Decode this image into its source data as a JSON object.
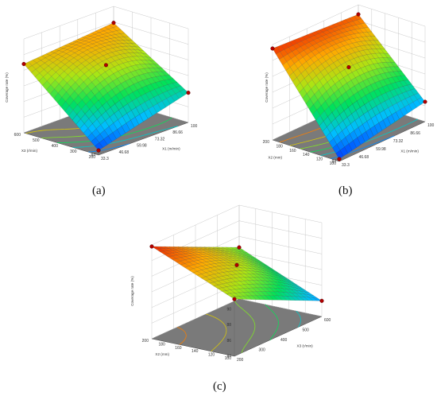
{
  "captions": [
    "(a)",
    "(b)",
    "(c)"
  ],
  "chart_data": [
    {
      "type": "surface3d",
      "caption": "(a)",
      "zlabel": "Coverage rate (%)",
      "xlabel": "X1 (m/min)",
      "ylabel": "X3 (r/min)",
      "zlim": [
        84,
        96
      ],
      "zticks": [
        "84",
        "86",
        "88",
        "90",
        "92",
        "94",
        "96"
      ],
      "xticks": [
        "33.3",
        "46.68",
        "59.98",
        "73.32",
        "86.66",
        "100"
      ],
      "yticks": [
        "200",
        "300",
        "400",
        "500",
        "600"
      ],
      "xlim": [
        33.3,
        100
      ],
      "ylim": [
        200,
        600
      ],
      "points": [
        {
          "x": 33.3,
          "y": 600,
          "z": 92.8
        },
        {
          "x": 66.6,
          "y": 400,
          "z": 92.0
        },
        {
          "x": 100,
          "y": 600,
          "z": 93.9
        },
        {
          "x": 33.3,
          "y": 200,
          "z": 84.6
        },
        {
          "x": 100,
          "y": 200,
          "z": 87.8
        }
      ]
    },
    {
      "type": "surface3d",
      "caption": "(b)",
      "zlabel": "Coverage rate (%)",
      "xlabel": "X1 (m/min)",
      "ylabel": "X2 (mm)",
      "zlim": [
        84,
        96
      ],
      "zticks": [
        "84",
        "86",
        "88",
        "90",
        "92",
        "94",
        "96"
      ],
      "xticks": [
        "33.3",
        "46.68",
        "59.98",
        "73.32",
        "86.66",
        "100"
      ],
      "yticks": [
        "100",
        "120",
        "140",
        "160",
        "180",
        "200"
      ],
      "xlim": [
        33.3,
        100
      ],
      "ylim": [
        100,
        200
      ],
      "points": [
        {
          "x": 33.3,
          "y": 200,
          "z": 95.5
        },
        {
          "x": 66.6,
          "y": 150,
          "z": 92.0
        },
        {
          "x": 100,
          "y": 200,
          "z": 94.8
        },
        {
          "x": 33.3,
          "y": 100,
          "z": 84.3
        },
        {
          "x": 100,
          "y": 100,
          "z": 86.5
        }
      ]
    },
    {
      "type": "surface3d",
      "caption": "(c)",
      "zlabel": "Coverage rate (%)",
      "xlabel": "X3 (r/min)",
      "ylabel": "X2 (mm)",
      "zlim": [
        84,
        96
      ],
      "zticks": [
        "84",
        "86",
        "88",
        "90",
        "92",
        "94",
        "96"
      ],
      "xticks": [
        "200",
        "300",
        "400",
        "500",
        "600"
      ],
      "yticks": [
        "100",
        "120",
        "140",
        "160",
        "180",
        "200"
      ],
      "xlim": [
        200,
        600
      ],
      "ylim": [
        100,
        200
      ],
      "points": [
        {
          "x": 200,
          "y": 200,
          "z": 95.8
        },
        {
          "x": 400,
          "y": 150,
          "z": 92.0
        },
        {
          "x": 600,
          "y": 200,
          "z": 90.6
        },
        {
          "x": 200,
          "y": 100,
          "z": 91.3
        },
        {
          "x": 600,
          "y": 100,
          "z": 86.0
        }
      ]
    }
  ]
}
